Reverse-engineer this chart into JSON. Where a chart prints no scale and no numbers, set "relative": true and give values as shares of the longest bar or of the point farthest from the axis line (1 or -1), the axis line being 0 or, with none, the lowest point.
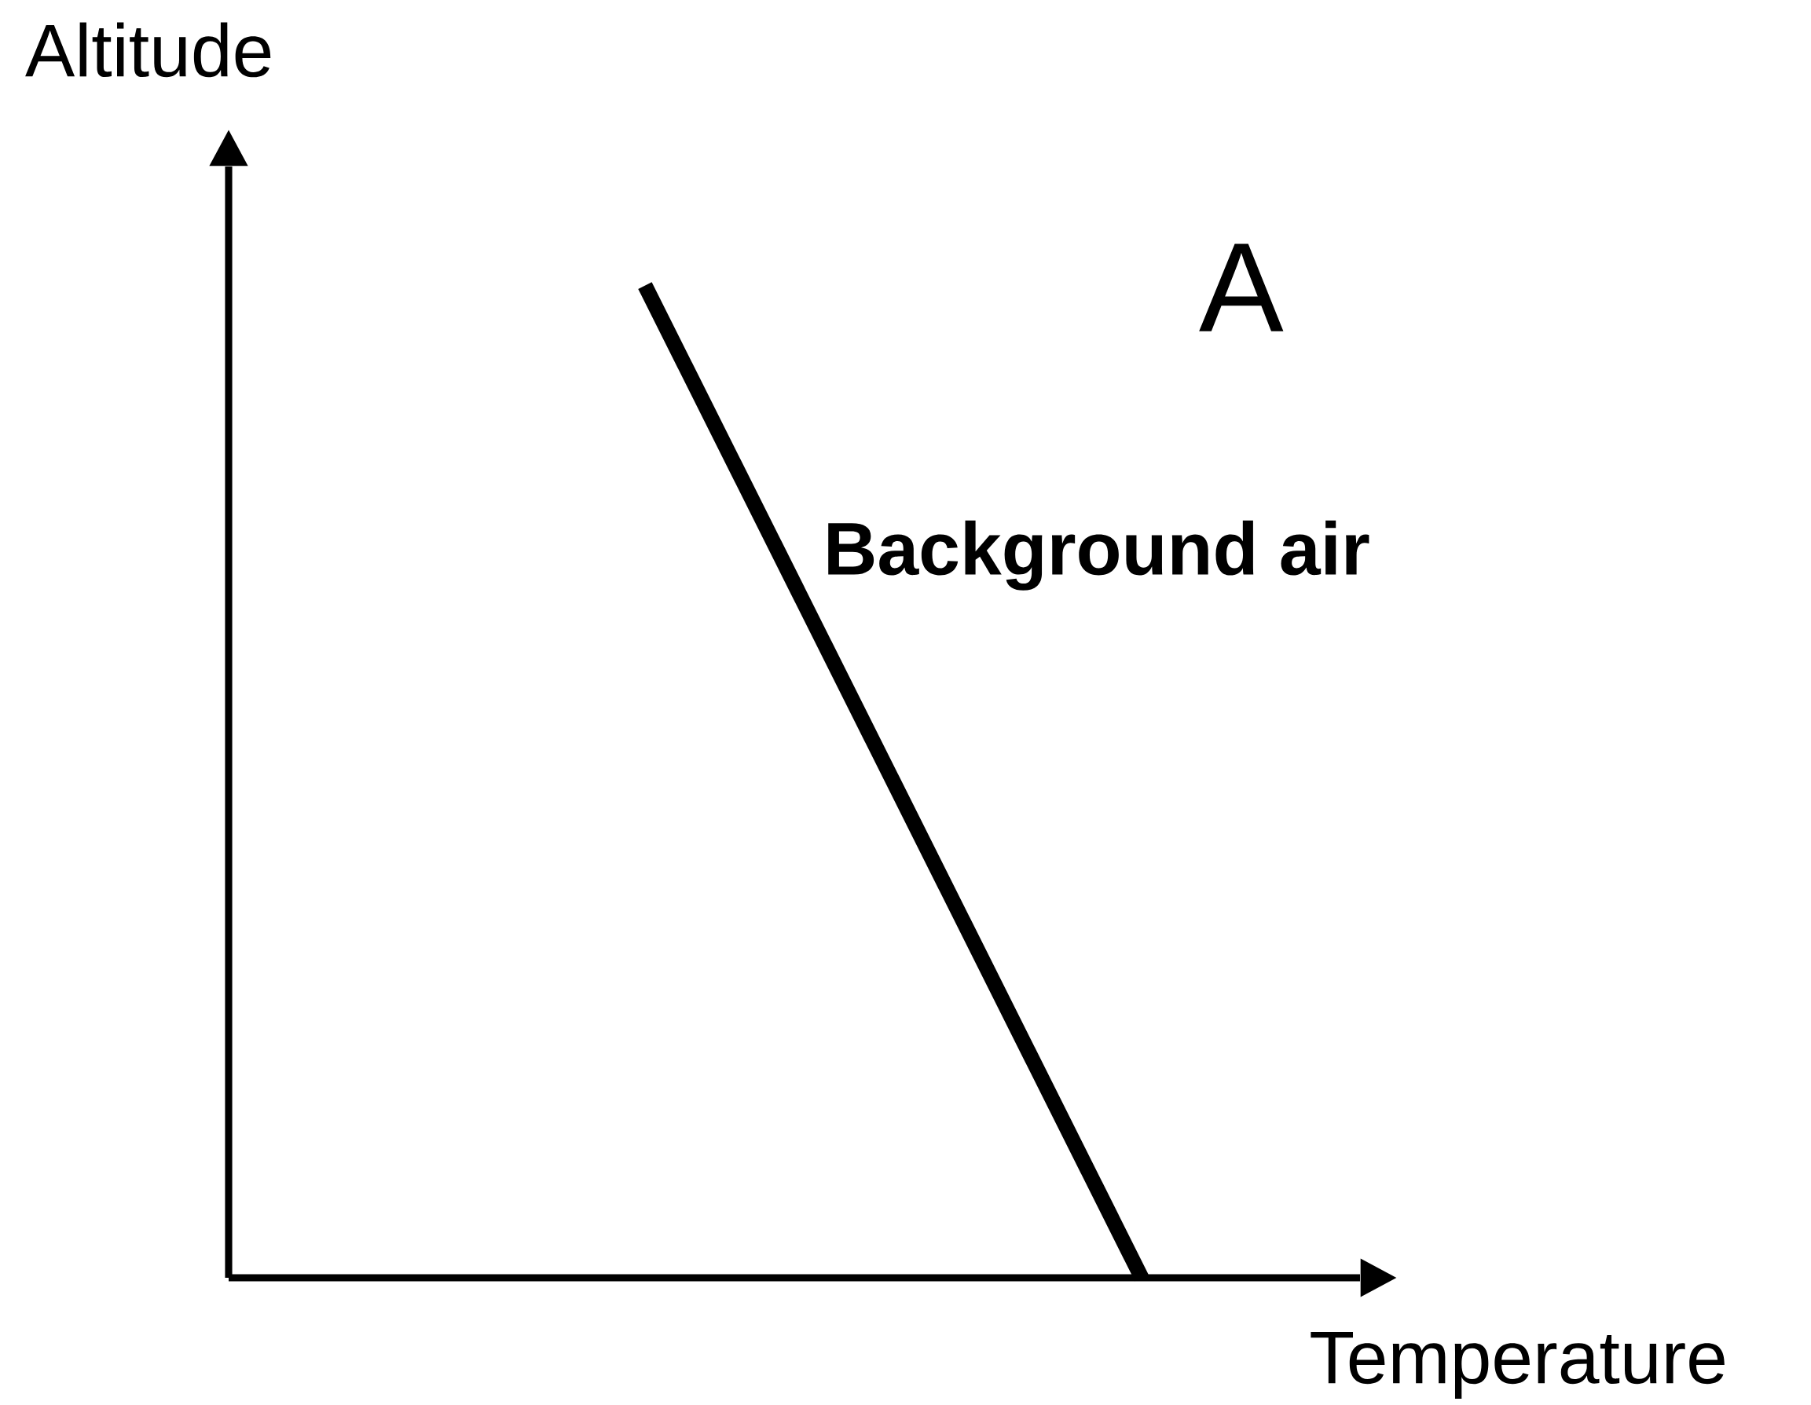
{
  "chart_data": {
    "type": "line",
    "relative": true,
    "xlabel": "Temperature",
    "ylabel": "Altitude",
    "categories": [
      null,
      null
    ],
    "series": [
      {
        "name": "Background air",
        "color": "#000000",
        "values": [
          1,
          0
        ]
      }
    ],
    "marker": "none",
    "line_style": "solid",
    "annotations": [
      "A"
    ]
  }
}
